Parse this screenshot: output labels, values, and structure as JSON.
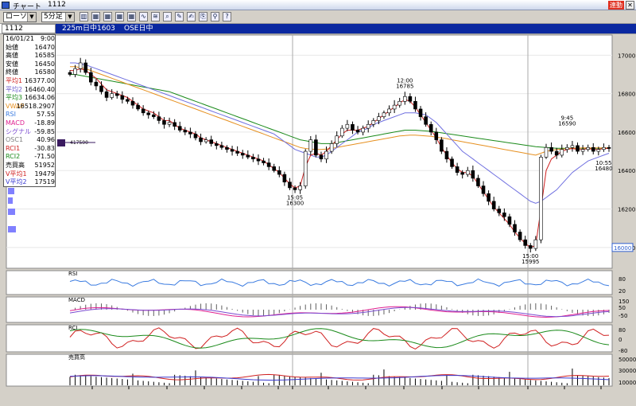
{
  "window": {
    "title": "チャート",
    "code": "1112",
    "badge": "連動",
    "close": "✕"
  },
  "toolbar": {
    "chart_type": "ローソク",
    "interval": "5分足",
    "icons": [
      "bar-chart-icon",
      "table-icon",
      "table-icon",
      "table-icon",
      "table-icon",
      "line-chart-icon",
      "indicator-icon",
      "zoom-icon",
      "draw-icon",
      "edit-icon",
      "copy-icon",
      "search-icon",
      "help-icon"
    ]
  },
  "header": {
    "code_input": "1112",
    "segments": [
      "225m日中",
      "1603",
      "OSE日中"
    ]
  },
  "data_panel": [
    {
      "k": "16/01/21",
      "v": "9:00",
      "c": "#000"
    },
    {
      "k": "始値",
      "v": "16470",
      "c": "#000"
    },
    {
      "k": "高値",
      "v": "16585",
      "c": "#000"
    },
    {
      "k": "安値",
      "v": "16450",
      "c": "#000"
    },
    {
      "k": "終値",
      "v": "16580",
      "c": "#000"
    },
    {
      "k": "平均1",
      "v": "16377.00",
      "c": "#d02020"
    },
    {
      "k": "平均2",
      "v": "16460.40",
      "c": "#6a5acd"
    },
    {
      "k": "平均3",
      "v": "16634.06",
      "c": "#1a8a1a"
    },
    {
      "k": "VWAP",
      "v": "16518.2907",
      "c": "#e69020"
    },
    {
      "k": "RSI",
      "v": "57.55",
      "c": "#3a7be0"
    },
    {
      "k": "MACD",
      "v": "-18.89",
      "c": "#e02090"
    },
    {
      "k": "シグナル",
      "v": "-59.85",
      "c": "#7a4ad0"
    },
    {
      "k": "OSC1",
      "v": "40.96",
      "c": "#808080"
    },
    {
      "k": "RCI1",
      "v": "-30.83",
      "c": "#d02020"
    },
    {
      "k": "RCI2",
      "v": "-71.50",
      "c": "#1a8a1a"
    },
    {
      "k": "売買高",
      "v": "51952",
      "c": "#000"
    },
    {
      "k": "V平均1",
      "v": "19479",
      "c": "#d02020"
    },
    {
      "k": "V平均2",
      "v": "17519",
      "c": "#3a3ad0"
    }
  ],
  "chart_data": {
    "type": "candlestick",
    "price_ticks": [
      17000,
      16800,
      16600,
      16400,
      16200,
      16000
    ],
    "current_price_label": "16000",
    "left_marker_label": "417500",
    "annotations": [
      {
        "time": "15:05",
        "value": "16300"
      },
      {
        "time": "12:00",
        "value": "16785"
      },
      {
        "time": "15:00",
        "value": "15995"
      },
      {
        "time": "9:45",
        "value": "16590"
      },
      {
        "time": "10:55",
        "value": "16480"
      }
    ],
    "x_ticks": [
      "10:00",
      "11:00",
      "12:00",
      "13:00",
      "14:00",
      "15:00",
      "9:00",
      "10:00",
      "11:00",
      "12:00",
      "13:00",
      "14:00",
      "9:00",
      "10:00",
      "11:00"
    ],
    "panels": [
      {
        "name": "RSI",
        "ticks": [
          "80",
          "20"
        ]
      },
      {
        "name": "MACD",
        "ticks": [
          "150",
          "50",
          "-50"
        ]
      },
      {
        "name": "RCI",
        "ticks": [
          "80",
          "0",
          "-80"
        ]
      },
      {
        "name": "売買高",
        "ticks": [
          "50000",
          "30000",
          "10000"
        ]
      }
    ],
    "close": [
      16900,
      16930,
      16960,
      16910,
      16860,
      16840,
      16810,
      16780,
      16800,
      16790,
      16770,
      16760,
      16740,
      16720,
      16700,
      16690,
      16680,
      16660,
      16640,
      16650,
      16630,
      16610,
      16600,
      16590,
      16570,
      16550,
      16560,
      16540,
      16530,
      16520,
      16510,
      16500,
      16490,
      16480,
      16470,
      16460,
      16450,
      16440,
      16420,
      16400,
      16380,
      16340,
      16310,
      16300,
      16320,
      16500,
      16560,
      16480,
      16460,
      16500,
      16540,
      16580,
      16620,
      16640,
      16610,
      16600,
      16620,
      16640,
      16660,
      16680,
      16700,
      16720,
      16740,
      16760,
      16785,
      16760,
      16720,
      16680,
      16640,
      16600,
      16560,
      16500,
      16460,
      16420,
      16390,
      16380,
      16400,
      16360,
      16320,
      16280,
      16240,
      16200,
      16180,
      16160,
      16120,
      16080,
      16040,
      16010,
      15995,
      16040,
      16470,
      16520,
      16500,
      16480,
      16510,
      16520,
      16530,
      16500,
      16510,
      16520,
      16500,
      16510,
      16520,
      16515
    ],
    "ma1": [
      16920,
      16920,
      16930,
      16920,
      16900,
      16880,
      16850,
      16820,
      16810,
      16800,
      16790,
      16780,
      16760,
      16740,
      16720,
      16710,
      16700,
      16680,
      16660,
      16660,
      16640,
      16620,
      16610,
      16600,
      16590,
      16570,
      16560,
      16550,
      16540,
      16530,
      16520,
      16510,
      16500,
      16490,
      16480,
      16470,
      16460,
      16450,
      16430,
      16410,
      16390,
      16360,
      16330,
      16310,
      16320,
      16420,
      16480,
      16490,
      16480,
      16500,
      16530,
      16560,
      16590,
      16610,
      16610,
      16610,
      16620,
      16630,
      16650,
      16670,
      16690,
      16710,
      16730,
      16750,
      16770,
      16760,
      16730,
      16690,
      16650,
      16610,
      16570,
      16520,
      16480,
      16440,
      16410,
      16390,
      16390,
      16370,
      16330,
      16290,
      16250,
      16210,
      16180,
      16150,
      16120,
      16080,
      16050,
      16020,
      16000,
      16010,
      16200,
      16400,
      16460,
      16480,
      16500,
      16510,
      16515,
      16510,
      16510,
      16515,
      16510,
      16510,
      16515,
      16515
    ],
    "ma2": [
      16960,
      16960,
      16955,
      16950,
      16940,
      16930,
      16920,
      16910,
      16900,
      16890,
      16880,
      16870,
      16860,
      16850,
      16840,
      16830,
      16820,
      16810,
      16800,
      16790,
      16780,
      16770,
      16760,
      16750,
      16740,
      16730,
      16720,
      16710,
      16700,
      16690,
      16680,
      16670,
      16660,
      16650,
      16640,
      16630,
      16620,
      16610,
      16600,
      16590,
      16570,
      16550,
      16530,
      16510,
      16500,
      16490,
      16480,
      16470,
      16470,
      16480,
      16500,
      16520,
      16540,
      16560,
      16580,
      16600,
      16610,
      16620,
      16640,
      16650,
      16660,
      16670,
      16680,
      16690,
      16700,
      16700,
      16700,
      16695,
      16690,
      16670,
      16650,
      16620,
      16590,
      16560,
      16530,
      16500,
      16480,
      16460,
      16440,
      16420,
      16400,
      16380,
      16360,
      16340,
      16320,
      16300,
      16280,
      16260,
      16240,
      16230,
      16240,
      16260,
      16280,
      16300,
      16330,
      16360,
      16390,
      16410,
      16430,
      16450,
      16460,
      16470,
      16480,
      16490
    ],
    "ma3": [
      16900,
      16900,
      16895,
      16890,
      16885,
      16880,
      16875,
      16870,
      16865,
      16860,
      16855,
      16850,
      16845,
      16840,
      16835,
      16830,
      16825,
      16820,
      16815,
      16810,
      16800,
      16790,
      16780,
      16770,
      16760,
      16750,
      16740,
      16730,
      16720,
      16710,
      16700,
      16690,
      16680,
      16670,
      16660,
      16650,
      16640,
      16630,
      16620,
      16610,
      16600,
      16590,
      16580,
      16570,
      16560,
      16555,
      16550,
      16545,
      16540,
      16540,
      16540,
      16545,
      16550,
      16555,
      16560,
      16565,
      16570,
      16575,
      16580,
      16585,
      16590,
      16595,
      16600,
      16605,
      16610,
      16610,
      16610,
      16608,
      16606,
      16604,
      16600,
      16596,
      16592,
      16588,
      16584,
      16580,
      16576,
      16572,
      16568,
      16564,
      16560,
      16556,
      16552,
      16548,
      16544,
      16540,
      16536,
      16532,
      16528,
      16524,
      16522,
      16520,
      16518,
      16516,
      16516,
      16516,
      16516,
      16516,
      16516,
      16516,
      16516,
      16516,
      16516,
      16516
    ],
    "vwap": [
      16940,
      16940,
      16935,
      16930,
      16920,
      16910,
      16900,
      16890,
      16880,
      16870,
      16860,
      16850,
      16840,
      16830,
      16820,
      16810,
      16800,
      16790,
      16780,
      16770,
      16760,
      16750,
      16740,
      16730,
      16720,
      16710,
      16700,
      16690,
      16680,
      16670,
      16660,
      16650,
      16640,
      16630,
      16620,
      16610,
      16600,
      16590,
      16580,
      16570,
      16560,
      16550,
      16540,
      16530,
      16520,
      16515,
      16512,
      16510,
      16510,
      16512,
      16515,
      16520,
      16525,
      16530,
      16535,
      16540,
      16545,
      16550,
      16555,
      16560,
      16565,
      16570,
      16575,
      16580,
      16582,
      16584,
      16584,
      16582,
      16580,
      16578,
      16574,
      16570,
      16566,
      16560,
      16555,
      16550,
      16545,
      16540,
      16535,
      16530,
      16525,
      16520,
      16515,
      16510,
      16505,
      16500,
      16495,
      16490,
      16485,
      16480,
      16490,
      16500,
      16505,
      16510,
      16512,
      16514,
      16516,
      16517,
      16518,
      16518,
      16518,
      16518,
      16518,
      16518
    ]
  }
}
